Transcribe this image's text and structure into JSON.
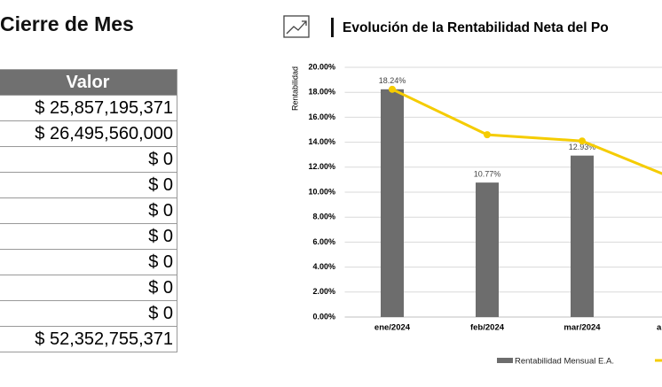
{
  "header": {
    "title": "Cierre de Mes"
  },
  "table": {
    "header": [
      "Valor"
    ],
    "rows": [
      [
        "$ 25,857,195,371"
      ],
      [
        "$ 26,495,560,000"
      ],
      [
        "$ 0"
      ],
      [
        "$ 0"
      ],
      [
        "$ 0"
      ],
      [
        "$ 0"
      ],
      [
        "$ 0"
      ],
      [
        "$ 0"
      ],
      [
        "$ 0"
      ],
      [
        "$ 52,352,755,371"
      ]
    ]
  },
  "chart_data": {
    "type": "bar-line",
    "title": "Evolución de la Rentabilidad Neta del Po",
    "y_label": "Rentabilidad",
    "categories": [
      "ene/2024",
      "feb/2024",
      "mar/2024",
      "a"
    ],
    "series": [
      {
        "name": "Rentabilidad Mensual E.A.",
        "kind": "bar",
        "color": "#6d6d6d",
        "values": [
          18.24,
          10.77,
          12.93,
          null
        ],
        "value_labels": [
          "18.24%",
          "10.77%",
          "12.93%",
          null
        ]
      },
      {
        "kind": "line",
        "color": "#f5cc00",
        "values": [
          18.24,
          14.6,
          14.1,
          11.0
        ]
      }
    ],
    "ylim": [
      0,
      20
    ],
    "yticks": [
      {
        "value": 0,
        "label": "0.00%"
      },
      {
        "value": 2,
        "label": "2.00%"
      },
      {
        "value": 4,
        "label": "4.00%"
      },
      {
        "value": 6,
        "label": "6.00%"
      },
      {
        "value": 8,
        "label": "8.00%"
      },
      {
        "value": 10,
        "label": "10.00%"
      },
      {
        "value": 12,
        "label": "12.00%"
      },
      {
        "value": 14,
        "label": "14.00%"
      },
      {
        "value": 16,
        "label": "16.00%"
      },
      {
        "value": 18,
        "label": "18.00%"
      },
      {
        "value": 20,
        "label": "20.00%"
      }
    ],
    "grid": true
  }
}
